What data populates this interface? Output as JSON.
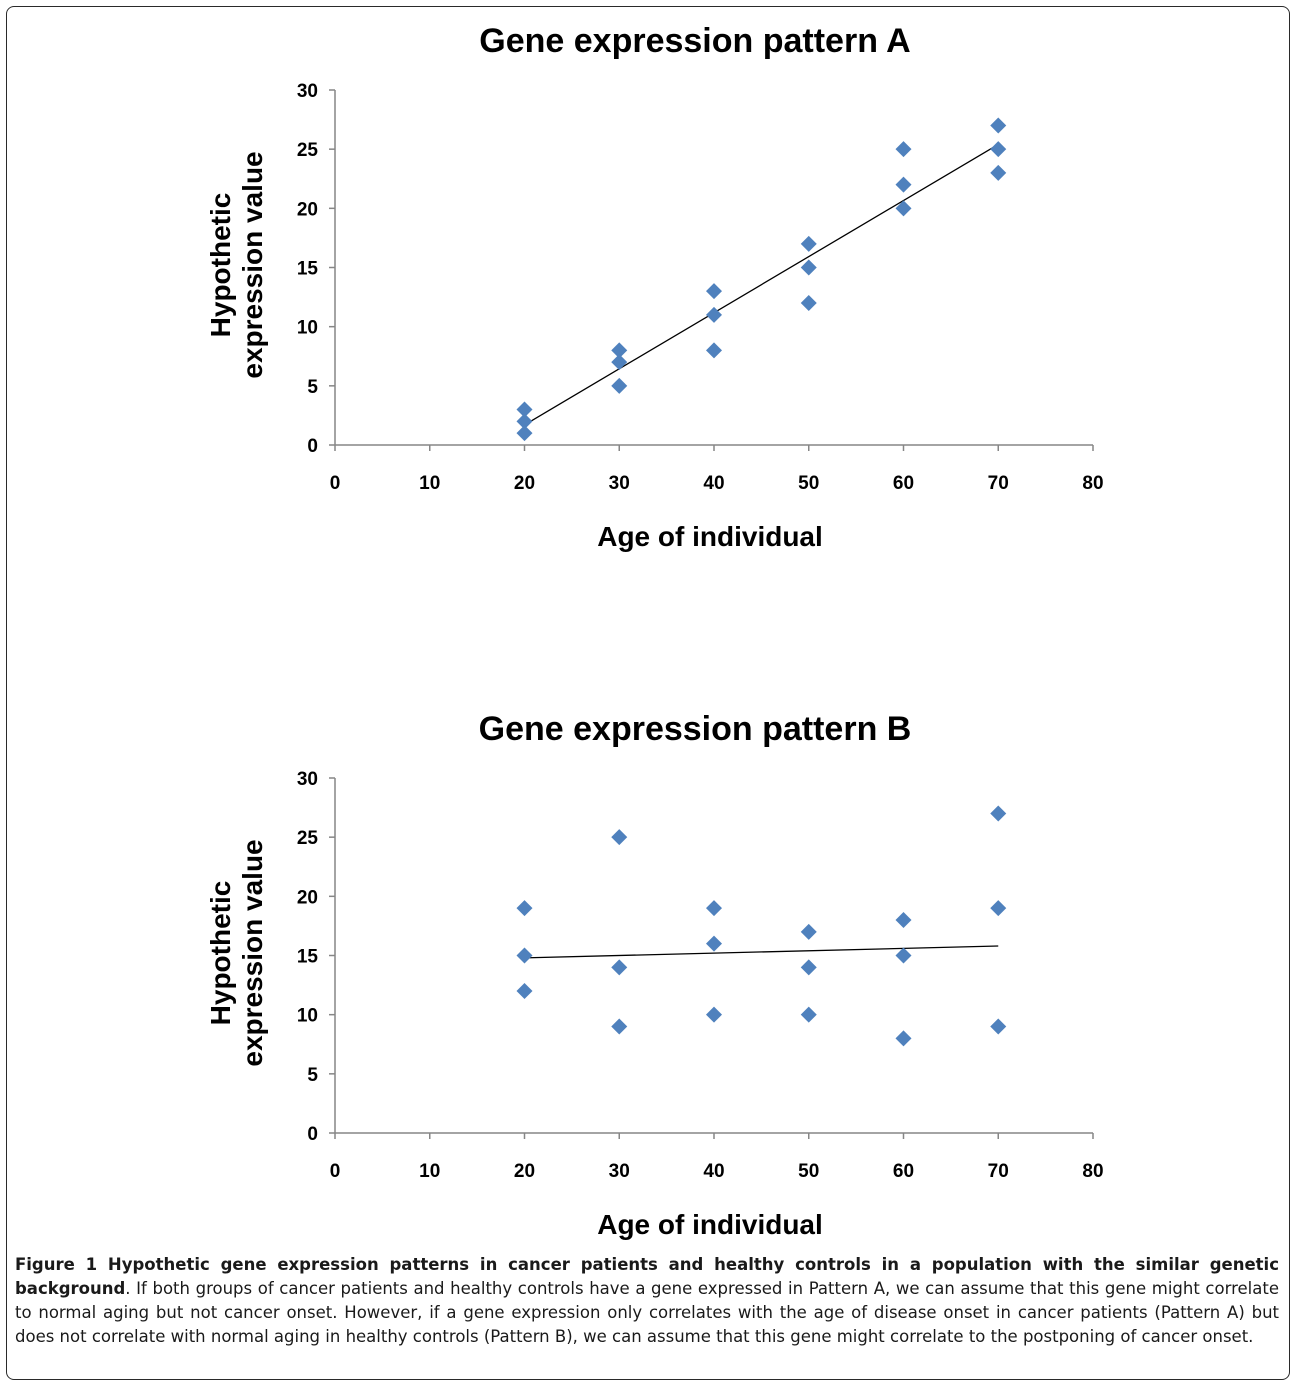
{
  "chart_data": [
    {
      "type": "scatter",
      "title": "Gene expression pattern A",
      "xlabel": "Age of individual",
      "ylabel": [
        "Hypothetic",
        "expression  value"
      ],
      "xlim": [
        0,
        80
      ],
      "ylim": [
        0,
        30
      ],
      "xticks": [
        0,
        10,
        20,
        30,
        40,
        50,
        60,
        70,
        80
      ],
      "yticks": [
        0,
        5,
        10,
        15,
        20,
        25,
        30
      ],
      "marker_color": "#4f81bd",
      "grid": false,
      "points": [
        {
          "x": 20,
          "y": 1
        },
        {
          "x": 20,
          "y": 2
        },
        {
          "x": 20,
          "y": 3
        },
        {
          "x": 30,
          "y": 5
        },
        {
          "x": 30,
          "y": 7
        },
        {
          "x": 30,
          "y": 8
        },
        {
          "x": 40,
          "y": 8
        },
        {
          "x": 40,
          "y": 11
        },
        {
          "x": 40,
          "y": 13
        },
        {
          "x": 50,
          "y": 12
        },
        {
          "x": 50,
          "y": 15
        },
        {
          "x": 50,
          "y": 17
        },
        {
          "x": 60,
          "y": 20
        },
        {
          "x": 60,
          "y": 22
        },
        {
          "x": 60,
          "y": 25
        },
        {
          "x": 70,
          "y": 23
        },
        {
          "x": 70,
          "y": 25
        },
        {
          "x": 70,
          "y": 27
        }
      ],
      "trendline": {
        "x": [
          20,
          70
        ],
        "y": [
          1.7,
          25.4
        ]
      }
    },
    {
      "type": "scatter",
      "title": "Gene expression pattern B",
      "xlabel": "Age of individual",
      "ylabel": [
        "Hypothetic",
        "expression  value"
      ],
      "xlim": [
        0,
        80
      ],
      "ylim": [
        0,
        30
      ],
      "xticks": [
        0,
        10,
        20,
        30,
        40,
        50,
        60,
        70,
        80
      ],
      "yticks": [
        0,
        5,
        10,
        15,
        20,
        25,
        30
      ],
      "marker_color": "#4f81bd",
      "grid": false,
      "points": [
        {
          "x": 20,
          "y": 12
        },
        {
          "x": 20,
          "y": 15
        },
        {
          "x": 20,
          "y": 19
        },
        {
          "x": 30,
          "y": 9
        },
        {
          "x": 30,
          "y": 14
        },
        {
          "x": 30,
          "y": 25
        },
        {
          "x": 40,
          "y": 10
        },
        {
          "x": 40,
          "y": 16
        },
        {
          "x": 40,
          "y": 19
        },
        {
          "x": 50,
          "y": 10
        },
        {
          "x": 50,
          "y": 14
        },
        {
          "x": 50,
          "y": 17
        },
        {
          "x": 60,
          "y": 8
        },
        {
          "x": 60,
          "y": 15
        },
        {
          "x": 60,
          "y": 18
        },
        {
          "x": 70,
          "y": 9
        },
        {
          "x": 70,
          "y": 19
        },
        {
          "x": 70,
          "y": 27
        }
      ],
      "trendline": {
        "x": [
          20,
          70
        ],
        "y": [
          14.8,
          15.8
        ]
      }
    }
  ],
  "caption": {
    "label": "Figure 1 Hypothetic gene expression patterns in cancer patients and healthy controls in a population with the similar genetic background",
    "text": ". If both groups of cancer patients and healthy controls have a gene expressed in Pattern A, we can assume that this gene might correlate to normal aging but not cancer onset. However, if a gene expression only correlates with the age of disease onset in cancer patients (Pattern A) but does not correlate with normal aging in healthy controls (Pattern B), we can assume that this gene might correlate to the postponing of cancer onset."
  }
}
